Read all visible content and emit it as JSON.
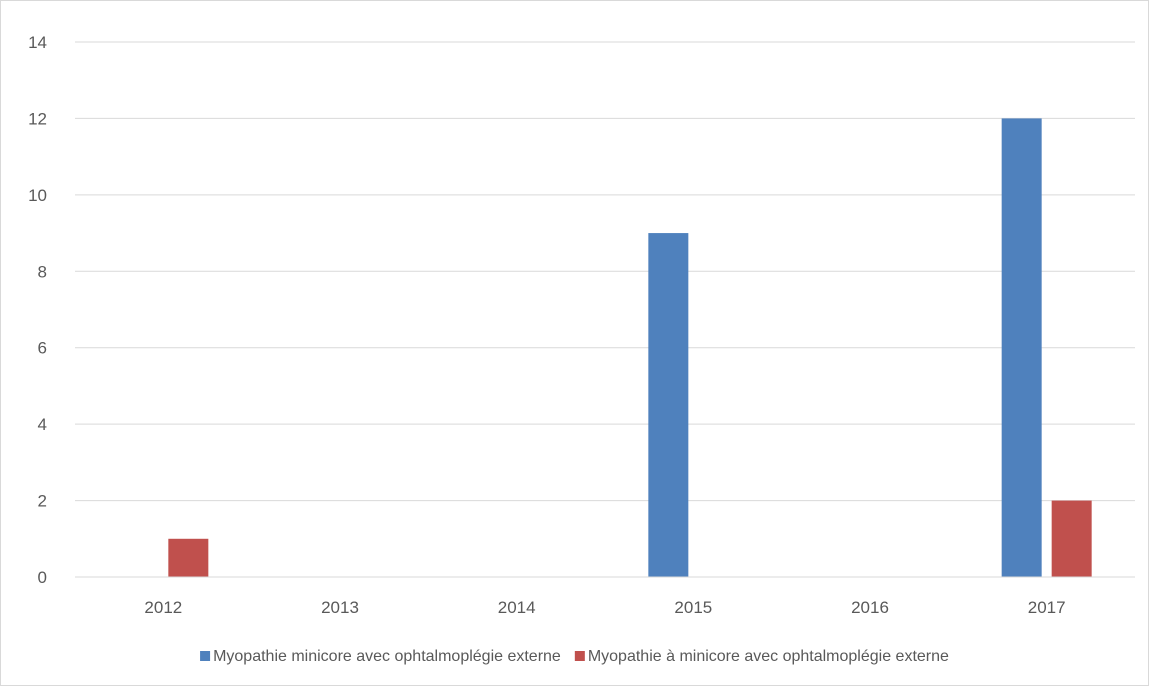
{
  "chart_data": {
    "type": "bar",
    "categories": [
      "2012",
      "2013",
      "2014",
      "2015",
      "2016",
      "2017"
    ],
    "series": [
      {
        "name": "Myopathie minicore avec ophtalmoplégie externe",
        "color": "#4f81bd",
        "values": [
          0,
          0,
          0,
          9,
          0,
          12
        ]
      },
      {
        "name": "Myopathie à minicore avec ophtalmoplégie externe",
        "color": "#c0504d",
        "values": [
          1,
          0,
          0,
          0,
          0,
          2
        ]
      }
    ],
    "yticks": [
      "0",
      "2",
      "4",
      "6",
      "8",
      "10",
      "12",
      "14"
    ],
    "ylim": [
      0,
      14
    ],
    "grid": true,
    "legend_position": "bottom",
    "title": "",
    "xlabel": "",
    "ylabel": ""
  }
}
